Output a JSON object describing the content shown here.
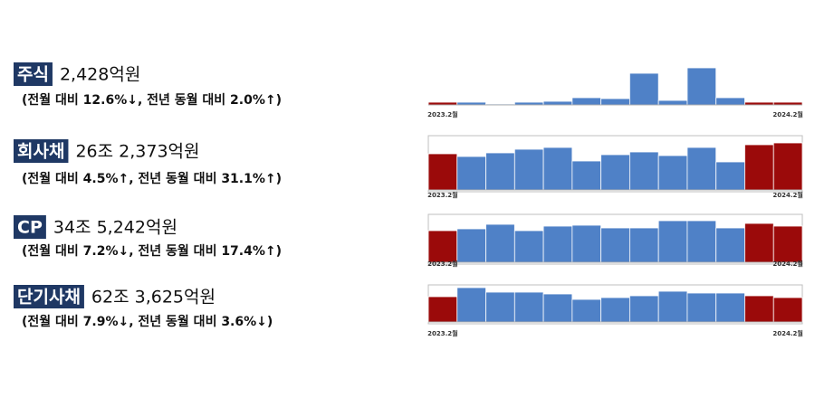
{
  "chart_data": [
    {
      "type": "bar",
      "title": "주식",
      "subtitle": "2,428억원",
      "note": "(전월 대비 12.6%↓, 전년 동월 대비 2.0%↑)",
      "categories": [
        "2023.2월",
        null,
        null,
        null,
        null,
        null,
        null,
        null,
        null,
        null,
        null,
        null,
        "2024.2월"
      ],
      "values": [
        3,
        3,
        1,
        3,
        4,
        8,
        7,
        35,
        5,
        41,
        8,
        3,
        3
      ],
      "colors": [
        "#9b0a0a",
        "#4f81c7",
        "#4f81c7",
        "#4f81c7",
        "#4f81c7",
        "#4f81c7",
        "#4f81c7",
        "#4f81c7",
        "#4f81c7",
        "#4f81c7",
        "#4f81c7",
        "#9b0a0a",
        "#9b0a0a"
      ],
      "frame": false
    },
    {
      "type": "bar",
      "title": "회사채",
      "subtitle": "26조 2,373억원",
      "note": "(전월 대비 4.5%↑, 전년 동월 대비 31.1%↑)",
      "categories": [
        "2023.2월",
        null,
        null,
        null,
        null,
        null,
        null,
        null,
        null,
        null,
        null,
        null,
        "2024.2월"
      ],
      "values": [
        40,
        37,
        41,
        45,
        47,
        32,
        39,
        42,
        38,
        47,
        31,
        50,
        52
      ],
      "colors": [
        "#9b0a0a",
        "#4f81c7",
        "#4f81c7",
        "#4f81c7",
        "#4f81c7",
        "#4f81c7",
        "#4f81c7",
        "#4f81c7",
        "#4f81c7",
        "#4f81c7",
        "#4f81c7",
        "#9b0a0a",
        "#9b0a0a"
      ],
      "frame": true
    },
    {
      "type": "bar",
      "title": "CP",
      "subtitle": "34조 5,242억원",
      "note": "(전월 대비 7.2%↓, 전년 동월 대비 17.4%↑)",
      "categories": [
        "2023.2월",
        null,
        null,
        null,
        null,
        null,
        null,
        null,
        null,
        null,
        null,
        null,
        "2024.2월"
      ],
      "values": [
        35,
        37,
        42,
        35,
        40,
        41,
        38,
        38,
        46,
        46,
        38,
        43,
        40
      ],
      "colors": [
        "#9b0a0a",
        "#4f81c7",
        "#4f81c7",
        "#4f81c7",
        "#4f81c7",
        "#4f81c7",
        "#4f81c7",
        "#4f81c7",
        "#4f81c7",
        "#4f81c7",
        "#4f81c7",
        "#9b0a0a",
        "#9b0a0a"
      ],
      "frame": true
    },
    {
      "type": "bar",
      "title": "단기사채",
      "subtitle": "62조 3,625억원",
      "note": "(전월 대비 7.9%↓, 전년 동월 대비 3.6%↓)",
      "categories": [
        "2023.2월",
        null,
        null,
        null,
        null,
        null,
        null,
        null,
        null,
        null,
        null,
        null,
        "2024.2월"
      ],
      "values": [
        28,
        38,
        33,
        33,
        31,
        25,
        27,
        29,
        34,
        32,
        32,
        29,
        27
      ],
      "colors": [
        "#9b0a0a",
        "#4f81c7",
        "#4f81c7",
        "#4f81c7",
        "#4f81c7",
        "#4f81c7",
        "#4f81c7",
        "#4f81c7",
        "#4f81c7",
        "#4f81c7",
        "#4f81c7",
        "#9b0a0a",
        "#9b0a0a"
      ],
      "frame": true
    }
  ]
}
